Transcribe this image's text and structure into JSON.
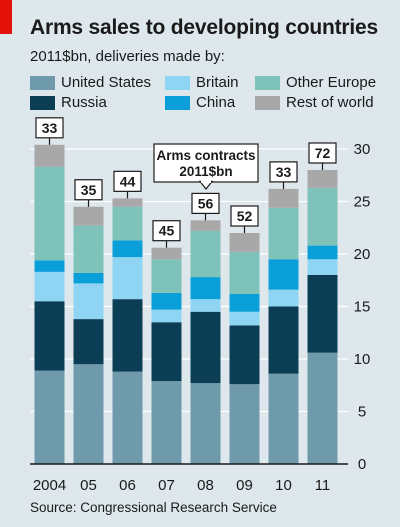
{
  "title": "Arms sales to developing countries",
  "subtitle": "2011$bn, deliveries made by:",
  "source": "Source: Congressional Research Service",
  "colors": {
    "United States": "#6f9aac",
    "Russia": "#0b3d55",
    "Britain": "#8fd4f2",
    "China": "#0a9fd9",
    "Other Europe": "#7ec2b9",
    "Rest of world": "#a8a8a8"
  },
  "chart_data": {
    "type": "bar",
    "stacked": true,
    "categories": [
      "2004",
      "05",
      "06",
      "07",
      "08",
      "09",
      "10",
      "11"
    ],
    "series": [
      {
        "name": "United States",
        "values": [
          8.9,
          9.5,
          8.8,
          7.9,
          7.7,
          7.6,
          8.6,
          10.6
        ]
      },
      {
        "name": "Russia",
        "values": [
          6.6,
          4.3,
          6.9,
          5.6,
          6.8,
          5.6,
          6.4,
          7.4
        ]
      },
      {
        "name": "Britain",
        "values": [
          2.8,
          3.4,
          4.0,
          1.2,
          1.2,
          1.3,
          1.6,
          1.5
        ]
      },
      {
        "name": "China",
        "values": [
          1.1,
          1.0,
          1.6,
          1.6,
          2.1,
          1.7,
          2.9,
          1.3
        ]
      },
      {
        "name": "Other Europe",
        "values": [
          8.9,
          4.5,
          3.2,
          3.2,
          4.4,
          4.0,
          4.9,
          5.5
        ]
      },
      {
        "name": "Rest of world",
        "values": [
          2.1,
          1.8,
          0.8,
          1.1,
          1.0,
          1.8,
          1.8,
          1.7
        ]
      }
    ],
    "annotations": {
      "label": [
        "Arms contracts",
        "2011$bn"
      ],
      "values": [
        33,
        35,
        44,
        45,
        56,
        52,
        33,
        72
      ]
    },
    "ylim": [
      0,
      30
    ],
    "yticks": [
      0,
      5,
      10,
      15,
      20,
      25,
      30
    ],
    "y_axis_side": "right",
    "grid": true
  }
}
